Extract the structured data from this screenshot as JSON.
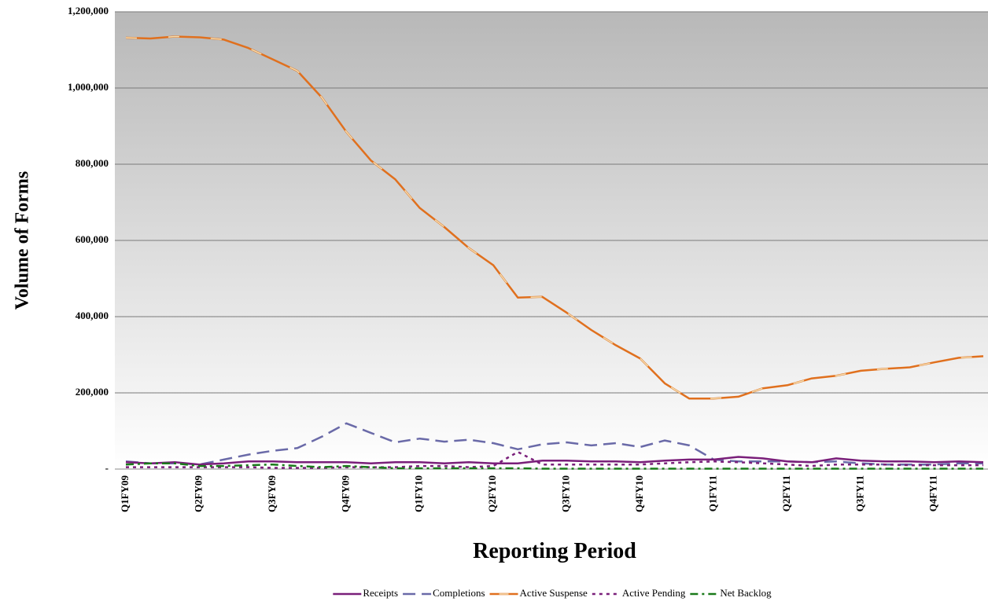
{
  "chart_data": {
    "type": "line",
    "x_label": "Reporting Period",
    "y_label": "Volume of Forms",
    "categories": [
      "Q1FY09",
      null,
      null,
      "Q2FY09",
      null,
      null,
      "Q3FY09",
      null,
      null,
      "Q4FY09",
      null,
      null,
      "Q1FY10",
      null,
      null,
      "Q2FY10",
      null,
      null,
      "Q3FY10",
      null,
      null,
      "Q4FY10",
      null,
      null,
      "Q1FY11",
      null,
      null,
      "Q2FY11",
      null,
      null,
      "Q3FY11",
      null,
      null,
      "Q4FY11",
      null,
      null
    ],
    "ylim": [
      0,
      1200000
    ],
    "yticks": [
      {
        "value": 0,
        "label": "-"
      },
      {
        "value": 200000,
        "label": "200,000"
      },
      {
        "value": 400000,
        "label": "400,000"
      },
      {
        "value": 600000,
        "label": "600,000"
      },
      {
        "value": 800000,
        "label": "800,000"
      },
      {
        "value": 1000000,
        "label": "1,000,000"
      },
      {
        "value": 1200000,
        "label": "1,200,000"
      }
    ],
    "grid": true,
    "legend": "bottom",
    "series": [
      {
        "name": "Receipts",
        "color": "#7a1f7a",
        "line_style": "solid",
        "values": [
          18000,
          15000,
          18000,
          12000,
          15000,
          20000,
          20000,
          18000,
          18000,
          18000,
          15000,
          18000,
          18000,
          15000,
          18000,
          15000,
          15000,
          22000,
          22000,
          20000,
          20000,
          18000,
          22000,
          25000,
          25000,
          32000,
          28000,
          20000,
          18000,
          28000,
          22000,
          20000,
          20000,
          18000,
          20000,
          18000
        ]
      },
      {
        "name": "Completions",
        "color": "#6a6aa8",
        "line_style": "dashed",
        "values": [
          20000,
          15000,
          15000,
          12000,
          25000,
          38000,
          48000,
          55000,
          85000,
          120000,
          95000,
          70000,
          80000,
          72000,
          77000,
          68000,
          52000,
          65000,
          70000,
          62000,
          68000,
          58000,
          75000,
          62000,
          25000,
          20000,
          20000,
          20000,
          18000,
          20000,
          15000,
          12000,
          12000,
          12000,
          15000,
          15000
        ]
      },
      {
        "name": "Active Suspense",
        "color": "#e0701e",
        "line_style": "solid",
        "dash_color": "#f5deb0",
        "values": [
          1132000,
          1130000,
          1135000,
          1133000,
          1127000,
          1105000,
          1075000,
          1045000,
          975000,
          885000,
          810000,
          760000,
          685000,
          635000,
          580000,
          535000,
          450000,
          452000,
          410000,
          365000,
          325000,
          290000,
          225000,
          185000,
          185000,
          190000,
          212000,
          220000,
          238000,
          245000,
          258000,
          263000,
          267000,
          280000,
          292000,
          296000
        ]
      },
      {
        "name": "Active Pending",
        "color": "#7a1f7a",
        "line_style": "dotted",
        "values": [
          5000,
          5000,
          5000,
          5000,
          5000,
          5000,
          3000,
          3000,
          3000,
          5000,
          5000,
          5000,
          8000,
          8000,
          5000,
          8000,
          45000,
          12000,
          12000,
          12000,
          12000,
          12000,
          15000,
          18000,
          20000,
          18000,
          15000,
          12000,
          8000,
          12000,
          12000,
          12000,
          10000,
          10000,
          10000,
          10000
        ]
      },
      {
        "name": "Net Backlog",
        "color": "#1a7a1a",
        "line_style": "dashdot",
        "values": [
          12000,
          15000,
          15000,
          8000,
          8000,
          10000,
          12000,
          8000,
          5000,
          8000,
          5000,
          2000,
          2000,
          2000,
          2000,
          2000,
          2000,
          1000,
          1000,
          1000,
          1000,
          1000,
          1000,
          1000,
          1000,
          1000,
          1000,
          1000,
          1000,
          1000,
          1000,
          1000,
          1000,
          1000,
          1000,
          1000
        ]
      }
    ]
  }
}
